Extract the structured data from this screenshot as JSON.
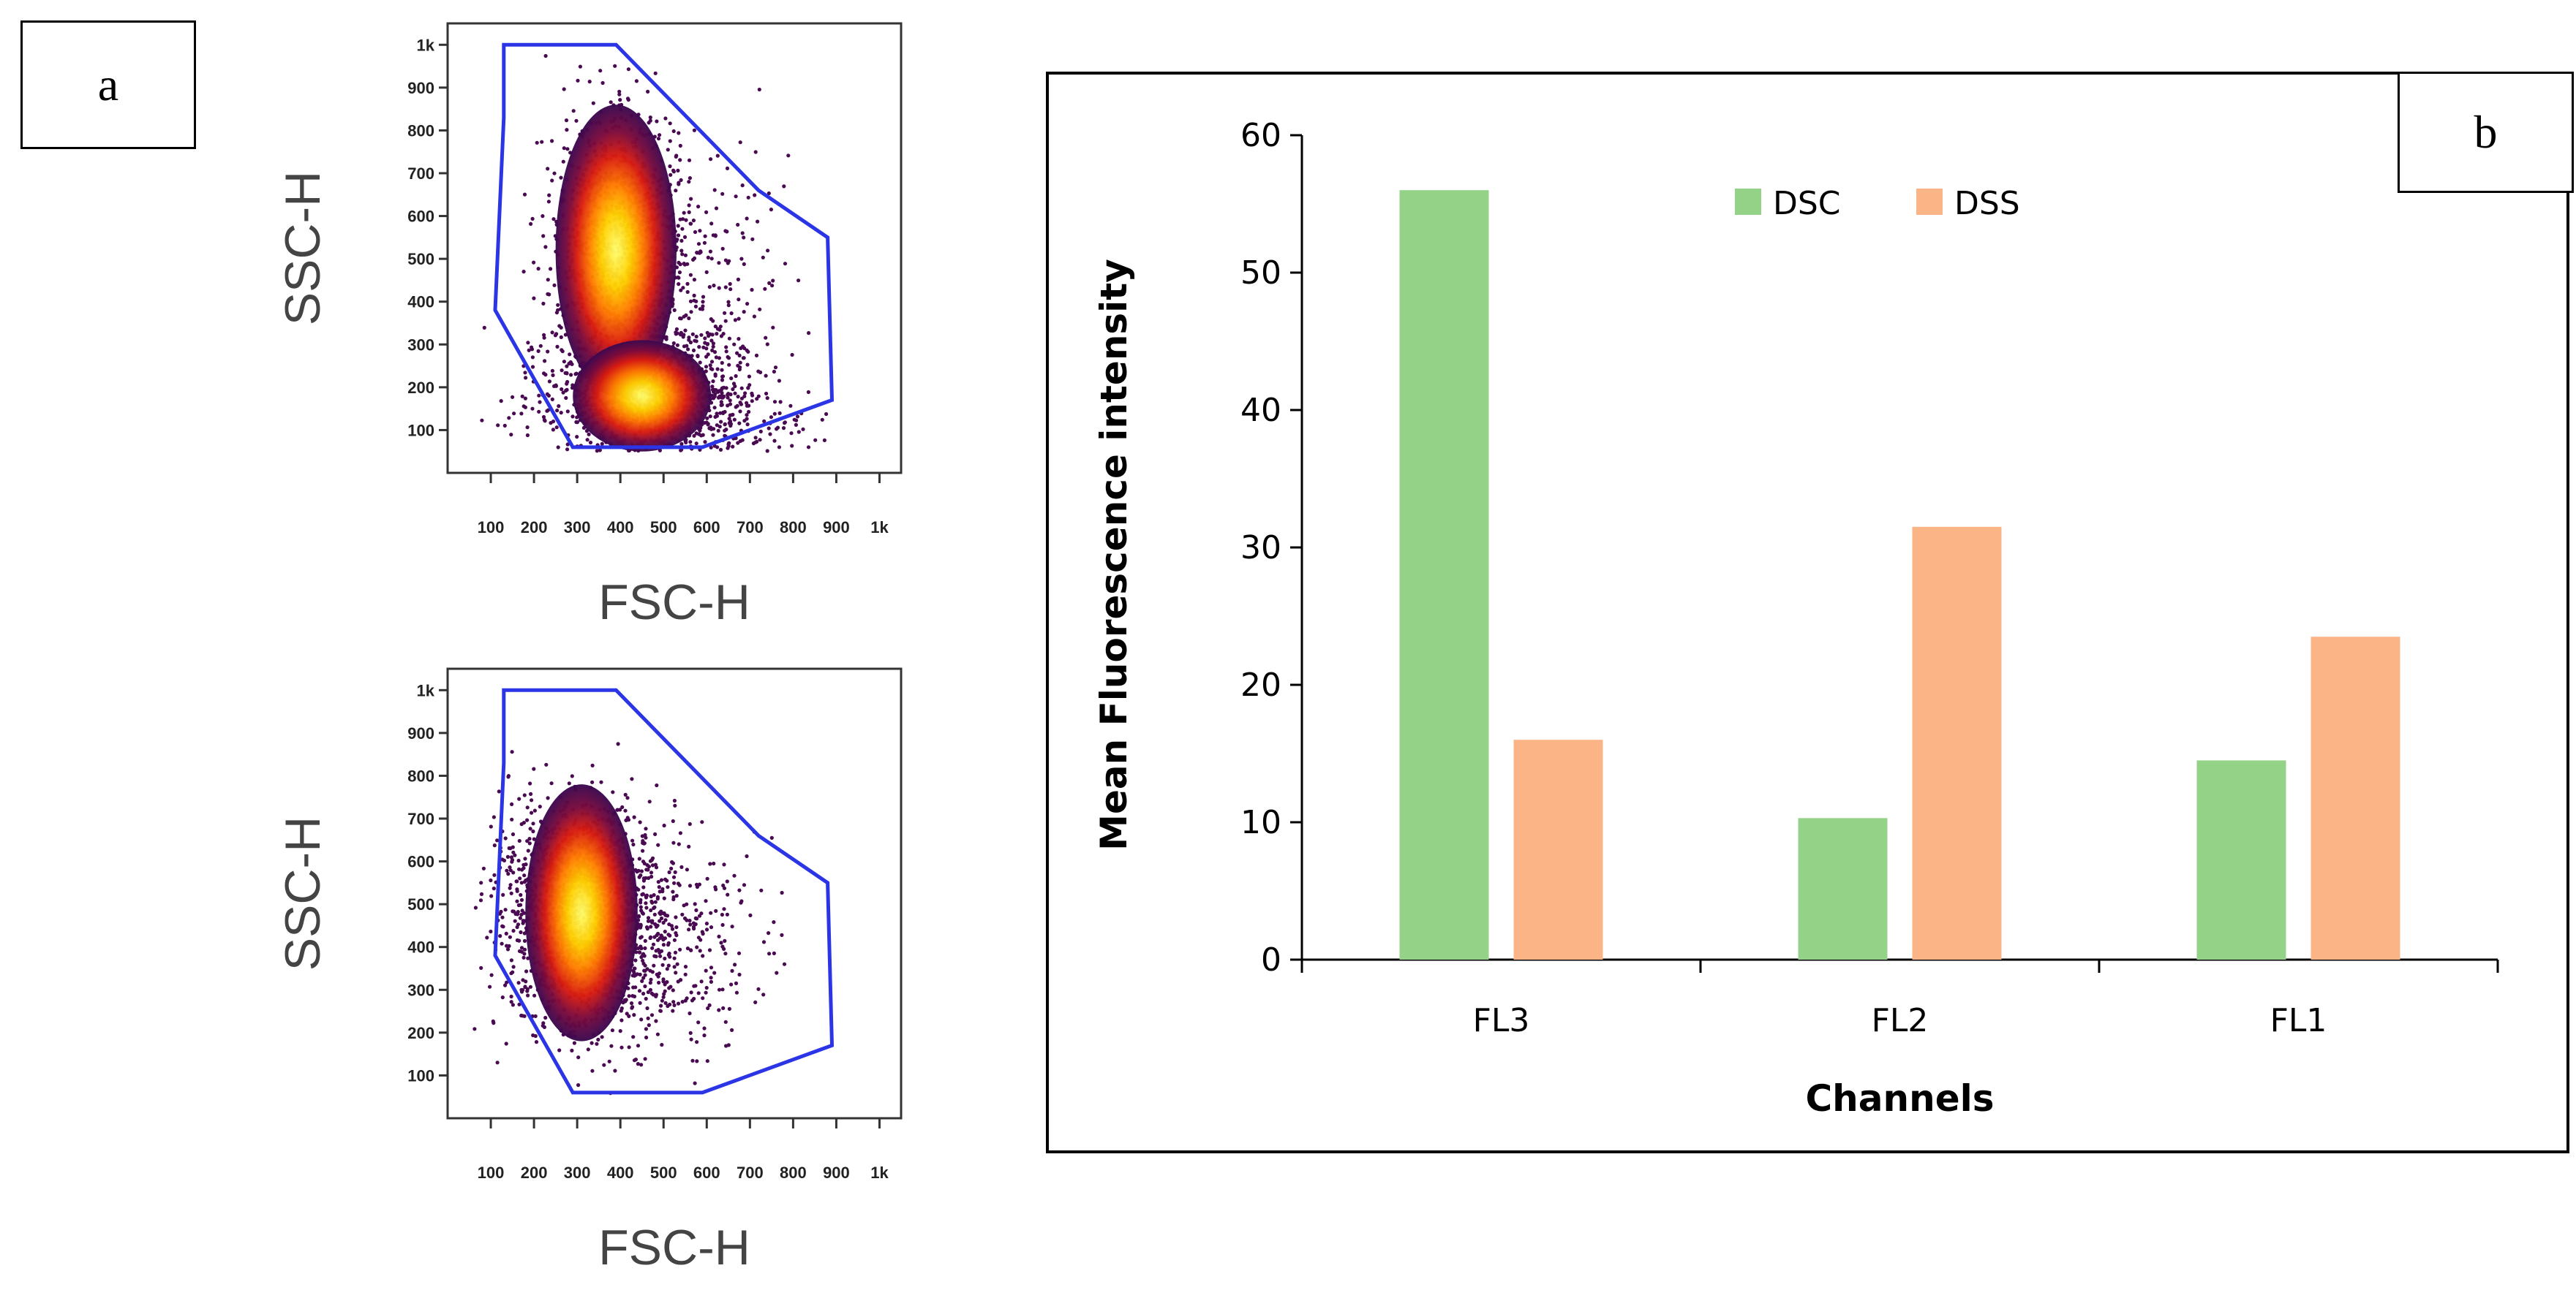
{
  "panel_a_label": "a",
  "panel_b_label": "b",
  "flow_plots": [
    {
      "title": "",
      "xlabel": "FSC-H",
      "ylabel": "SSC-H",
      "x_ticks": [
        "100",
        "200",
        "300",
        "400",
        "500",
        "600",
        "700",
        "800",
        "900",
        "1k"
      ],
      "y_ticks": [
        "100",
        "200",
        "300",
        "400",
        "500",
        "600",
        "700",
        "800",
        "900",
        "1k"
      ]
    },
    {
      "title": "",
      "xlabel": "FSC-H",
      "ylabel": "SSC-H",
      "x_ticks": [
        "100",
        "200",
        "300",
        "400",
        "500",
        "600",
        "700",
        "800",
        "900",
        "1k"
      ],
      "y_ticks": [
        "100",
        "200",
        "300",
        "400",
        "500",
        "600",
        "700",
        "800",
        "900",
        "1k"
      ]
    }
  ],
  "chart_data": [
    {
      "type": "scatter",
      "title": "",
      "xlabel": "FSC-H",
      "ylabel": "SSC-H",
      "xlim": [
        0,
        1050
      ],
      "ylim": [
        0,
        1050
      ],
      "gate_polygon": [
        [
          130,
          1000
        ],
        [
          390,
          1000
        ],
        [
          720,
          660
        ],
        [
          880,
          550
        ],
        [
          890,
          170
        ],
        [
          590,
          60
        ],
        [
          290,
          60
        ],
        [
          110,
          380
        ],
        [
          130,
          830
        ]
      ],
      "density_clusters": [
        {
          "x": 390,
          "y": 520,
          "note": "main population"
        },
        {
          "x": 450,
          "y": 180,
          "note": "secondary population"
        }
      ]
    },
    {
      "type": "scatter",
      "title": "",
      "xlabel": "FSC-H",
      "ylabel": "SSC-H",
      "xlim": [
        0,
        1050
      ],
      "ylim": [
        0,
        1050
      ],
      "gate_polygon": [
        [
          130,
          1000
        ],
        [
          390,
          1000
        ],
        [
          720,
          660
        ],
        [
          880,
          550
        ],
        [
          890,
          170
        ],
        [
          590,
          60
        ],
        [
          290,
          60
        ],
        [
          110,
          380
        ],
        [
          130,
          830
        ]
      ],
      "density_clusters": [
        {
          "x": 310,
          "y": 480,
          "note": "main population"
        }
      ]
    },
    {
      "type": "bar",
      "title": "",
      "xlabel": "Channels",
      "ylabel": "Mean Fluorescence intensity",
      "categories": [
        "FL3",
        "FL2",
        "FL1"
      ],
      "series": [
        {
          "name": "DSC",
          "values": [
            56,
            10.3,
            14.5
          ],
          "color": "#93d287"
        },
        {
          "name": "DSS",
          "values": [
            16,
            31.5,
            23.5
          ],
          "color": "#fbb485"
        }
      ],
      "ylim": [
        0,
        60
      ],
      "y_ticks": [
        "0",
        "10",
        "20",
        "30",
        "40",
        "50",
        "60"
      ],
      "legend": "top-center"
    }
  ]
}
